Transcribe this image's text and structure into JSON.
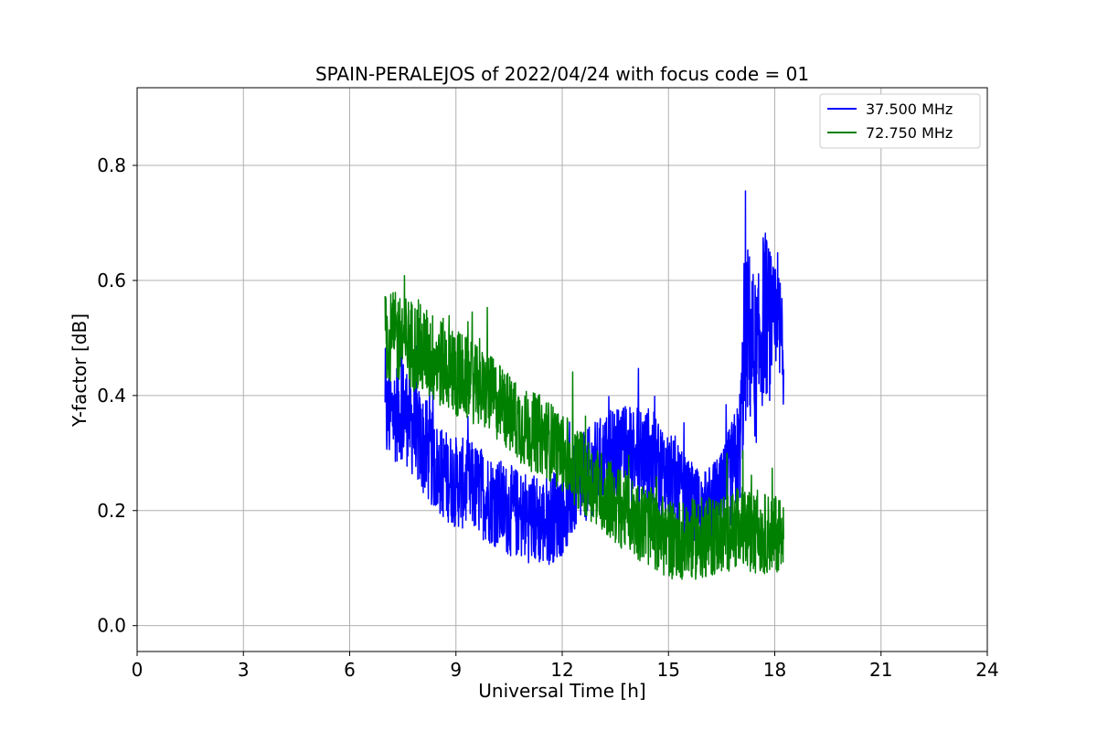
{
  "chart_data": {
    "type": "line",
    "title": "SPAIN-PERALEJOS of 2022/04/24 with focus code = 01",
    "xlabel": "Universal Time [h]",
    "ylabel": "Y-factor [dB]",
    "xlim": [
      0,
      24
    ],
    "ylim": [
      -0.045,
      0.935
    ],
    "xticks": [
      0,
      3,
      6,
      9,
      12,
      15,
      18,
      21,
      24
    ],
    "yticks": [
      0.0,
      0.2,
      0.4,
      0.6,
      0.8
    ],
    "ytick_labels": [
      "0.0",
      "0.2",
      "0.4",
      "0.6",
      "0.8"
    ],
    "grid": true,
    "legend_position": "top-right",
    "series": [
      {
        "name": "37.500 MHz",
        "color": "#0000ff",
        "x": [
          7.0,
          7.5,
          8.0,
          8.5,
          9.0,
          9.5,
          10.0,
          10.5,
          11.0,
          11.5,
          12.0,
          12.5,
          13.0,
          13.5,
          14.0,
          14.5,
          15.0,
          15.5,
          16.0,
          16.5,
          17.0,
          17.2,
          17.5,
          17.7,
          18.0,
          18.25
        ],
        "y": [
          0.36,
          0.38,
          0.32,
          0.27,
          0.25,
          0.24,
          0.22,
          0.2,
          0.19,
          0.18,
          0.2,
          0.25,
          0.28,
          0.3,
          0.3,
          0.29,
          0.26,
          0.22,
          0.2,
          0.22,
          0.3,
          0.52,
          0.45,
          0.55,
          0.5,
          0.5
        ],
        "spread": [
          0.09,
          0.09,
          0.09,
          0.08,
          0.08,
          0.08,
          0.08,
          0.08,
          0.08,
          0.08,
          0.08,
          0.08,
          0.08,
          0.08,
          0.09,
          0.09,
          0.08,
          0.07,
          0.07,
          0.08,
          0.1,
          0.16,
          0.14,
          0.15,
          0.12,
          0.12
        ]
      },
      {
        "name": "72.750 MHz",
        "color": "#008000",
        "x": [
          7.0,
          7.5,
          8.0,
          8.5,
          9.0,
          9.5,
          10.0,
          10.5,
          11.0,
          11.5,
          12.0,
          12.5,
          13.0,
          13.5,
          14.0,
          14.5,
          15.0,
          15.5,
          16.0,
          16.5,
          17.0,
          17.5,
          18.0,
          18.25
        ],
        "y": [
          0.5,
          0.5,
          0.48,
          0.46,
          0.44,
          0.42,
          0.4,
          0.37,
          0.34,
          0.33,
          0.3,
          0.27,
          0.24,
          0.21,
          0.19,
          0.17,
          0.15,
          0.15,
          0.15,
          0.16,
          0.17,
          0.16,
          0.16,
          0.17
        ],
        "spread": [
          0.08,
          0.08,
          0.08,
          0.08,
          0.08,
          0.07,
          0.07,
          0.07,
          0.07,
          0.07,
          0.07,
          0.07,
          0.07,
          0.07,
          0.07,
          0.07,
          0.07,
          0.07,
          0.07,
          0.07,
          0.07,
          0.07,
          0.07,
          0.07
        ]
      }
    ]
  }
}
